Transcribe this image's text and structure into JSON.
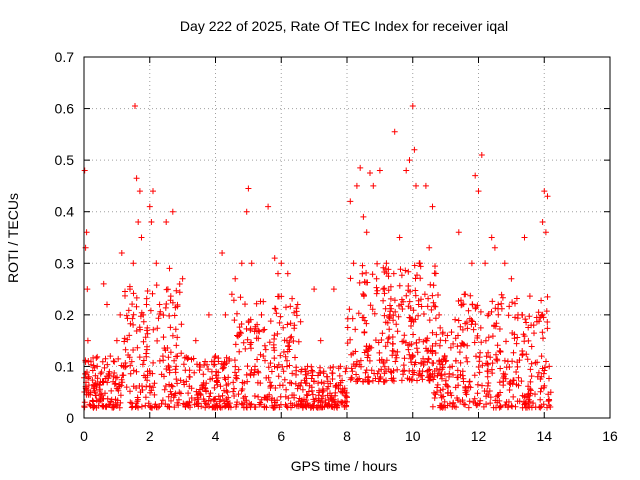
{
  "chart_data": {
    "type": "scatter",
    "title": "Day 222 of 2025, Rate Of TEC Index for receiver iqal",
    "xlabel": "GPS time / hours",
    "ylabel": "ROTI / TECUs",
    "xlim": [
      0,
      16
    ],
    "ylim": [
      0,
      0.7
    ],
    "x_ticks": [
      "0",
      "2",
      "4",
      "6",
      "8",
      "10",
      "12",
      "14",
      "16"
    ],
    "y_ticks": [
      "0",
      "0.1",
      "0.2",
      "0.3",
      "0.4",
      "0.5",
      "0.6",
      "0.7"
    ],
    "grid": true,
    "marker": "+",
    "color": "#ff0000",
    "series": [
      {
        "name": "ROTI",
        "data_extent_hours": [
          0,
          14.2
        ],
        "points": [
          [
            0.02,
            0.48
          ],
          [
            0.05,
            0.33
          ],
          [
            0.08,
            0.36
          ],
          [
            0.1,
            0.25
          ],
          [
            0.12,
            0.15
          ],
          [
            0.15,
            0.08
          ],
          [
            0.2,
            0.05
          ],
          [
            0.3,
            0.06
          ],
          [
            0.4,
            0.1
          ],
          [
            0.5,
            0.07
          ],
          [
            0.6,
            0.26
          ],
          [
            0.7,
            0.22
          ],
          [
            0.8,
            0.12
          ],
          [
            0.9,
            0.08
          ],
          [
            1.0,
            0.15
          ],
          [
            1.1,
            0.2
          ],
          [
            1.15,
            0.32
          ],
          [
            1.2,
            0.1
          ],
          [
            1.3,
            0.06
          ],
          [
            1.4,
            0.25
          ],
          [
            1.5,
            0.3
          ],
          [
            1.55,
            0.605
          ],
          [
            1.6,
            0.465
          ],
          [
            1.65,
            0.38
          ],
          [
            1.7,
            0.44
          ],
          [
            1.75,
            0.35
          ],
          [
            1.8,
            0.2
          ],
          [
            1.9,
            0.22
          ],
          [
            2.0,
            0.41
          ],
          [
            2.05,
            0.38
          ],
          [
            2.1,
            0.44
          ],
          [
            2.2,
            0.3
          ],
          [
            2.3,
            0.22
          ],
          [
            2.4,
            0.12
          ],
          [
            2.5,
            0.38
          ],
          [
            2.6,
            0.29
          ],
          [
            2.7,
            0.4
          ],
          [
            2.8,
            0.1
          ],
          [
            2.9,
            0.05
          ],
          [
            3.0,
            0.27
          ],
          [
            3.2,
            0.08
          ],
          [
            3.4,
            0.15
          ],
          [
            3.6,
            0.06
          ],
          [
            3.8,
            0.2
          ],
          [
            4.0,
            0.12
          ],
          [
            4.2,
            0.32
          ],
          [
            4.3,
            0.2
          ],
          [
            4.5,
            0.24
          ],
          [
            4.6,
            0.27
          ],
          [
            4.8,
            0.3
          ],
          [
            4.95,
            0.4
          ],
          [
            5.0,
            0.445
          ],
          [
            5.1,
            0.3
          ],
          [
            5.2,
            0.1
          ],
          [
            5.4,
            0.2
          ],
          [
            5.6,
            0.41
          ],
          [
            5.8,
            0.31
          ],
          [
            5.9,
            0.28
          ],
          [
            6.0,
            0.3
          ],
          [
            6.2,
            0.28
          ],
          [
            6.4,
            0.18
          ],
          [
            6.5,
            0.22
          ],
          [
            6.6,
            0.09
          ],
          [
            6.8,
            0.1
          ],
          [
            7.0,
            0.25
          ],
          [
            7.2,
            0.15
          ],
          [
            7.4,
            0.08
          ],
          [
            7.6,
            0.25
          ],
          [
            7.8,
            0.1
          ],
          [
            8.0,
            0.04
          ],
          [
            8.1,
            0.42
          ],
          [
            8.2,
            0.3
          ],
          [
            8.3,
            0.45
          ],
          [
            8.4,
            0.485
          ],
          [
            8.5,
            0.39
          ],
          [
            8.6,
            0.36
          ],
          [
            8.7,
            0.475
          ],
          [
            8.8,
            0.45
          ],
          [
            8.9,
            0.27
          ],
          [
            9.0,
            0.48
          ],
          [
            9.1,
            0.25
          ],
          [
            9.2,
            0.3
          ],
          [
            9.3,
            0.2
          ],
          [
            9.45,
            0.555
          ],
          [
            9.6,
            0.35
          ],
          [
            9.8,
            0.48
          ],
          [
            9.9,
            0.5
          ],
          [
            10.0,
            0.605
          ],
          [
            10.05,
            0.52
          ],
          [
            10.1,
            0.45
          ],
          [
            10.2,
            0.3
          ],
          [
            10.4,
            0.45
          ],
          [
            10.5,
            0.33
          ],
          [
            10.6,
            0.41
          ],
          [
            10.8,
            0.2
          ],
          [
            11.0,
            0.15
          ],
          [
            11.2,
            0.1
          ],
          [
            11.4,
            0.36
          ],
          [
            11.5,
            0.22
          ],
          [
            11.6,
            0.24
          ],
          [
            11.8,
            0.3
          ],
          [
            11.9,
            0.47
          ],
          [
            12.0,
            0.44
          ],
          [
            12.1,
            0.51
          ],
          [
            12.2,
            0.3
          ],
          [
            12.4,
            0.35
          ],
          [
            12.5,
            0.33
          ],
          [
            12.6,
            0.22
          ],
          [
            12.8,
            0.3
          ],
          [
            13.0,
            0.27
          ],
          [
            13.2,
            0.2
          ],
          [
            13.4,
            0.35
          ],
          [
            13.6,
            0.18
          ],
          [
            13.8,
            0.08
          ],
          [
            13.95,
            0.38
          ],
          [
            14.0,
            0.44
          ],
          [
            14.05,
            0.36
          ],
          [
            14.1,
            0.43
          ],
          [
            14.15,
            0.1
          ],
          [
            14.2,
            0.05
          ]
        ]
      }
    ]
  }
}
